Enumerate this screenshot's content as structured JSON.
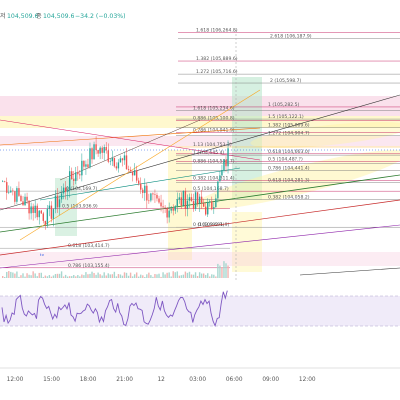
{
  "header": {
    "label_h": "저",
    "value_h": "104,509.6",
    "label_c": "종",
    "value_c": "104,509.6",
    "change": "−34.2 (−0.03%)"
  },
  "colors": {
    "up": "#26a69a",
    "down": "#ef5350",
    "price_line": "#1e53e5",
    "fib": "#9aa0a6",
    "fib_text": "#555555",
    "zone_pink": "#f6c9dd",
    "zone_yellow": "#fff3a6",
    "zone_green": "#b5e3c8",
    "rsi_fill": "#e9e3f7",
    "rsi_line": "#7e57c2"
  },
  "fib_right": [
    {
      "label": "1.618 (106,264.8)",
      "price": 106264.8
    },
    {
      "label": "2.618 (106,187.9)",
      "price": 106187.9
    },
    {
      "label": "1.382 (105,889.6)",
      "price": 105889.6
    },
    {
      "label": "1.272 (105,716.6)",
      "price": 105716.6
    },
    {
      "label": "2 (105,598.7)",
      "price": 105598.7
    },
    {
      "label": "1 (105,282.5)",
      "price": 105282.5
    },
    {
      "label": "1.618 (105,234.6)",
      "price": 105234.6
    },
    {
      "label": "1.5 (105,122.1)",
      "price": 105122.1
    },
    {
      "label": "0.886 (105,100.8)",
      "price": 105100.8
    },
    {
      "label": "1.382 (105,009.6)",
      "price": 105009.6
    },
    {
      "label": "0.786 (104,941.9)",
      "price": 104941.9
    },
    {
      "label": "1.272 (104,904.7)",
      "price": 104904.7
    },
    {
      "label": "1.13 (104,753.3)",
      "price": 104753.3
    },
    {
      "label": "0.618 (104,663.0)",
      "price": 104663.0
    },
    {
      "label": "1 (104,645.4)",
      "price": 104645.4
    },
    {
      "label": "0.5 (104,48?.?)",
      "price": 104560.0
    },
    {
      "label": "0.886 (104,536.7)",
      "price": 104536.7
    },
    {
      "label": "0.786 (104,441.4)",
      "price": 104441.4
    },
    {
      "label": "0.382 (104,311.4)",
      "price": 104311.4
    },
    {
      "label": "0.618 (104,281.3)",
      "price": 104281.3
    },
    {
      "label": "0.5 (104,168.7)",
      "price": 104168.7
    },
    {
      "label": "0.382 (104,058.2)",
      "price": 104058.2
    },
    {
      "label": "0 (103,692.1)",
      "price": 103692.1
    }
  ],
  "fib_left": [
    {
      "label": "0 (104,169.7)",
      "price": 104169.7
    },
    {
      "label": "0.5 (103,936.9)",
      "price": 103936.9
    },
    {
      "label": "0.618 (103,414.7)",
      "price": 103414.7
    },
    {
      "label": "0.786 (103,155.4)",
      "price": 103155.4
    },
    {
      "label": "0 (103,691.9)",
      "price": 103691.9
    }
  ],
  "time_axis": {
    "ticks": [
      {
        "label": "12:00",
        "offset_hours": 0
      },
      {
        "label": "15:00",
        "offset_hours": 3
      },
      {
        "label": "18:00",
        "offset_hours": 6
      },
      {
        "label": "21:00",
        "offset_hours": 9
      },
      {
        "label": "12",
        "offset_hours": 12
      },
      {
        "label": "03:00",
        "offset_hours": 15
      },
      {
        "label": "06:00",
        "offset_hours": 18
      },
      {
        "label": "09:00",
        "offset_hours": 21
      },
      {
        "label": "12:00",
        "offset_hours": 24
      }
    ]
  },
  "watermark": "ᵗᵛ"
}
